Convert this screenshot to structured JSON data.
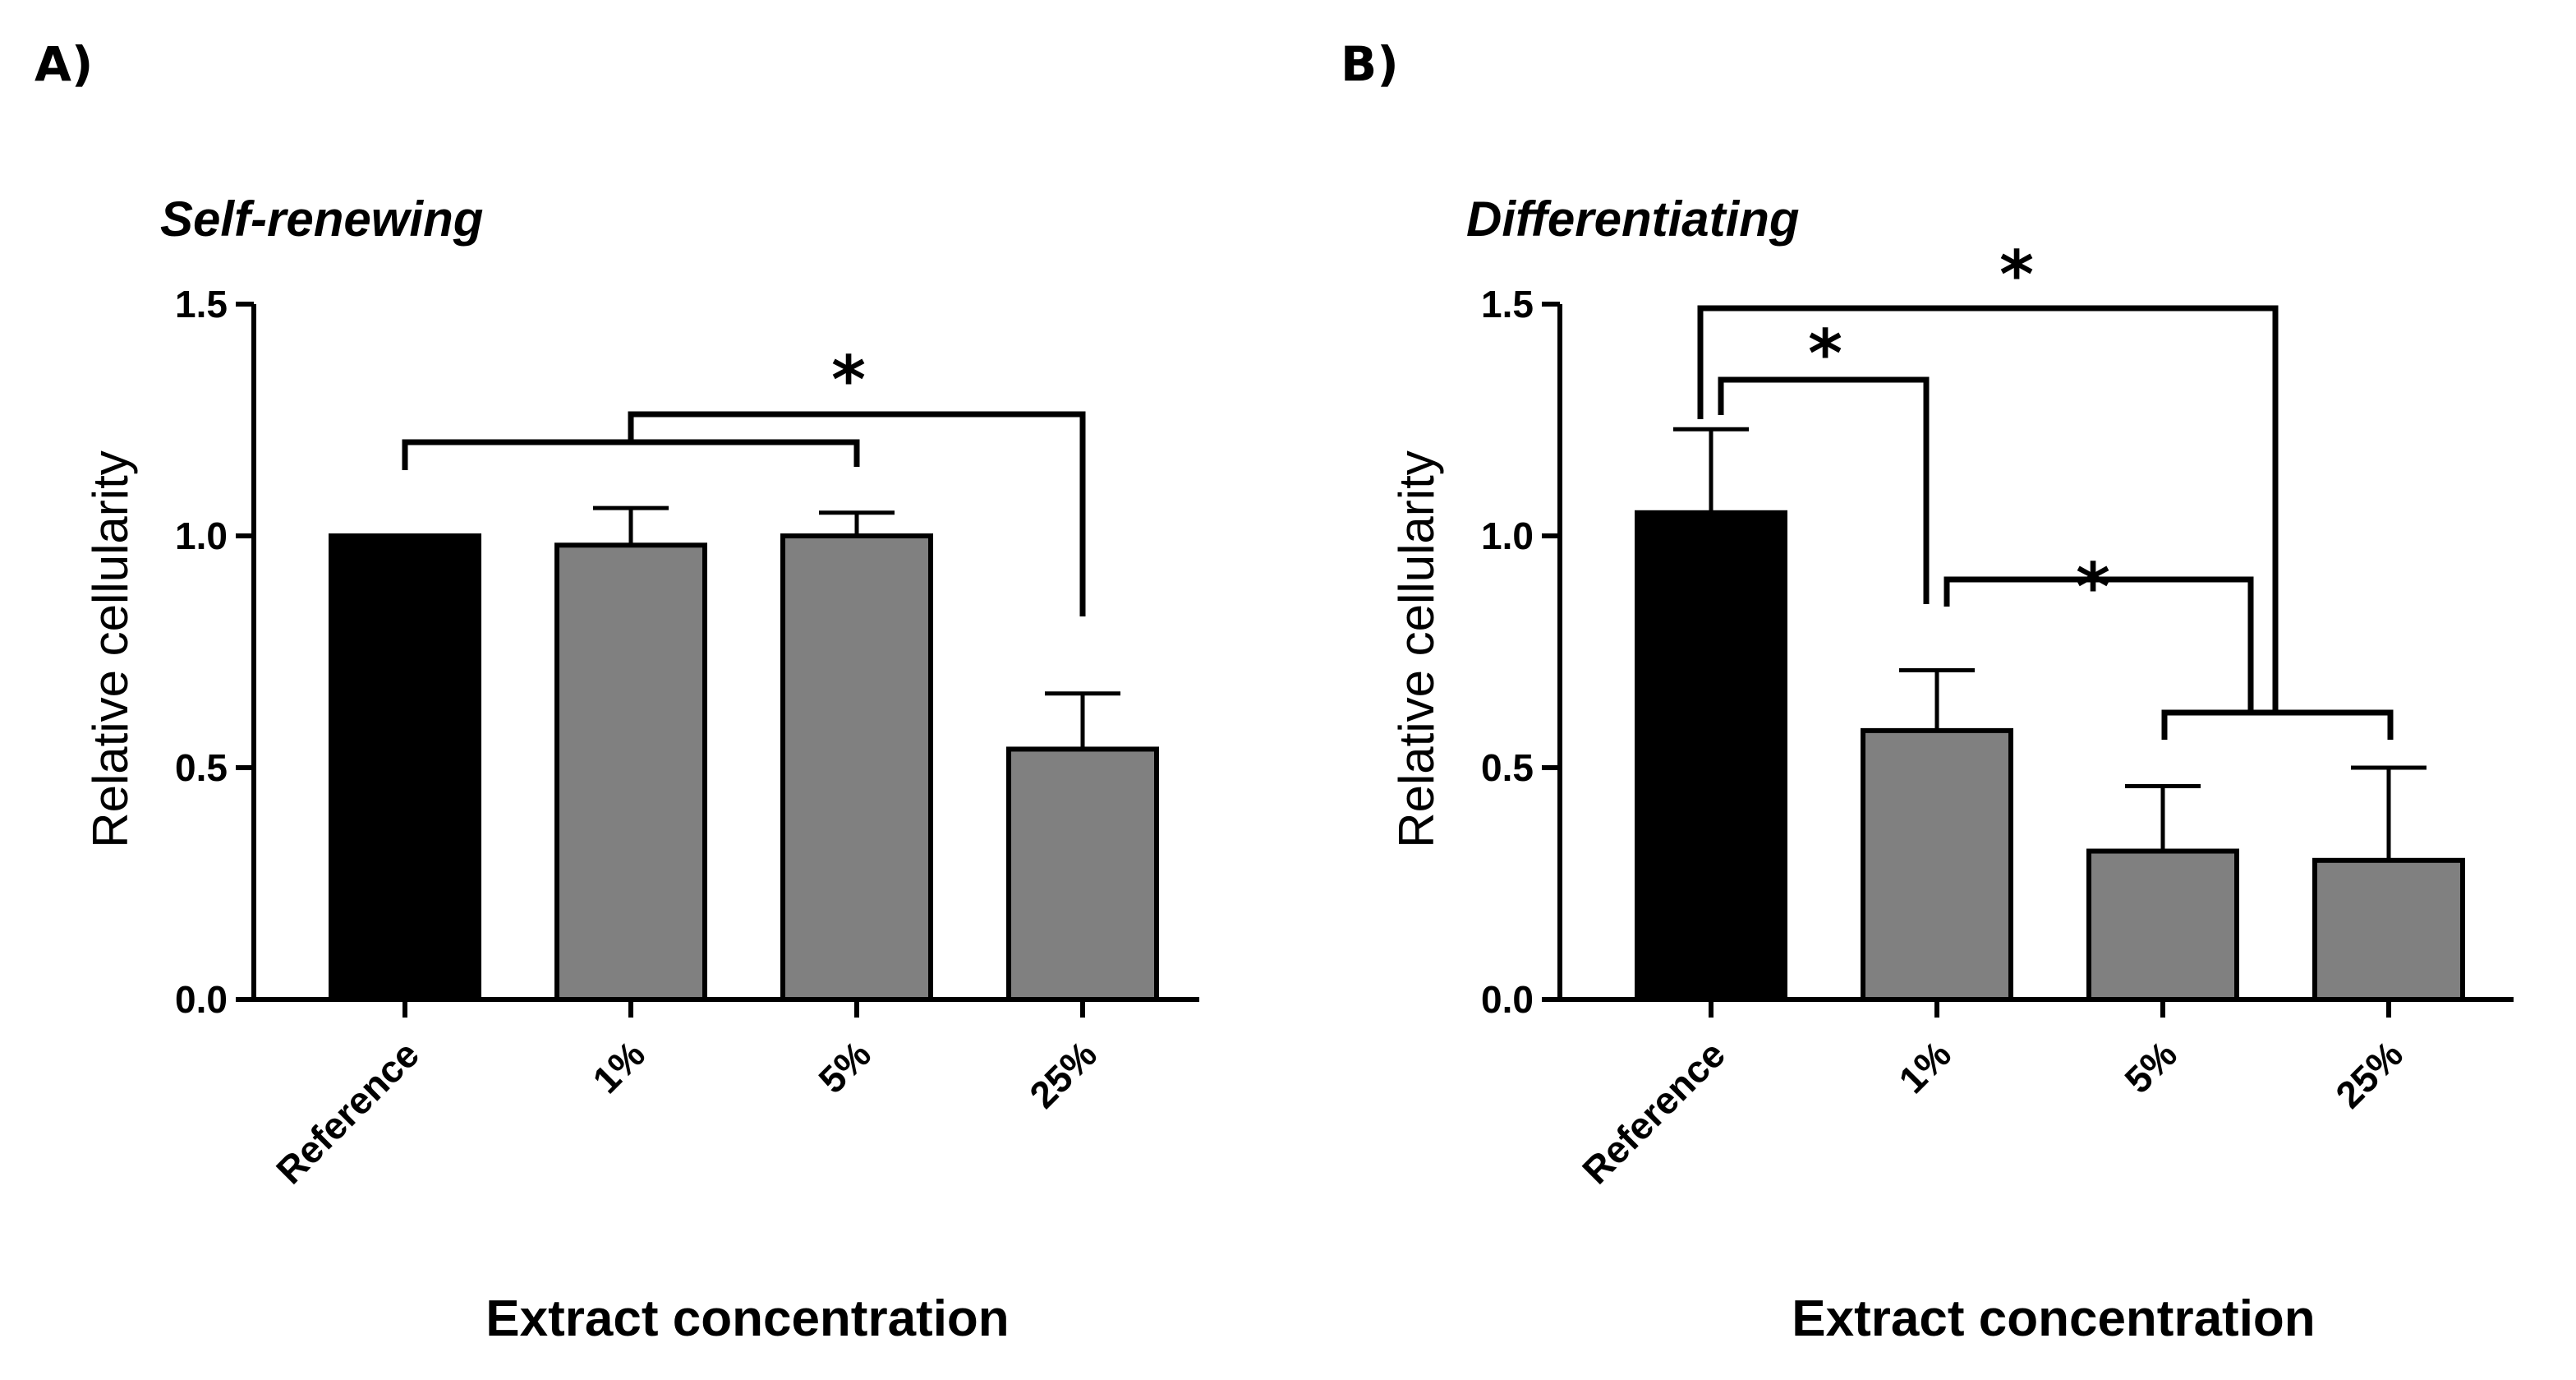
{
  "chart_data": [
    {
      "type": "bar",
      "panel_label": "A)",
      "title": "Self-renewing",
      "xlabel": "Extract concentration",
      "ylabel": "Relative cellularity",
      "ylim": [
        0,
        1.5
      ],
      "yticks": [
        "0.0",
        "0.5",
        "1.0",
        "1.5"
      ],
      "grid": false,
      "categories": [
        "Reference",
        "1%",
        "5%",
        "25%"
      ],
      "values": [
        1.0,
        0.98,
        1.0,
        0.54
      ],
      "errors": [
        0.0,
        0.08,
        0.05,
        0.12
      ],
      "colors": [
        "#000000",
        "#808080",
        "#808080",
        "#808080"
      ],
      "significance": [
        {
          "label": "*",
          "from_group": [
            "Reference",
            "1%",
            "5%"
          ],
          "to": "25%"
        }
      ]
    },
    {
      "type": "bar",
      "panel_label": "B)",
      "title": "Differentiating",
      "xlabel": "Extract concentration",
      "ylabel": "Relative cellularity",
      "ylim": [
        0,
        1.5
      ],
      "yticks": [
        "0.0",
        "0.5",
        "1.0",
        "1.5"
      ],
      "grid": false,
      "categories": [
        "Reference",
        "1%",
        "5%",
        "25%"
      ],
      "values": [
        1.05,
        0.58,
        0.32,
        0.3
      ],
      "errors": [
        0.18,
        0.13,
        0.14,
        0.2
      ],
      "colors": [
        "#000000",
        "#808080",
        "#808080",
        "#808080"
      ],
      "significance": [
        {
          "label": "*",
          "from": "Reference",
          "to": "1%"
        },
        {
          "label": "*",
          "from": "Reference",
          "to_group": [
            "5%",
            "25%"
          ]
        },
        {
          "label": "*",
          "from": "1%",
          "to_group": [
            "5%",
            "25%"
          ]
        }
      ]
    }
  ]
}
